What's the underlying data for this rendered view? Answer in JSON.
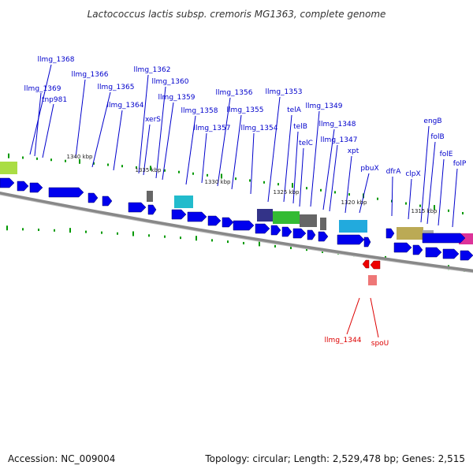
{
  "title": "Lactococcus lactis subsp. cremoris MG1363, complete genome",
  "footer": {
    "accession": "Accession: NC_009004",
    "summary": "Topology: circular; Length: 2,529,478 bp; Genes: 2,515"
  },
  "colors": {
    "forward_gene": "#0000ee",
    "reverse_gene": "#ee0000",
    "backbone": "#888888",
    "marker": "#009900",
    "label_forward": "#0000cc",
    "label_reverse": "#dd0000"
  },
  "gene_labels": [
    "llmg_1368",
    "llmg_1369",
    "tnp981",
    "llmg_1366",
    "llmg_1365",
    "llmg_1364",
    "llmg_1362",
    "llmg_1360",
    "llmg_1359",
    "xerS",
    "llmg_1358",
    "llmg_1357",
    "llmg_1356",
    "llmg_1355",
    "llmg_1354",
    "llmg_1353",
    "telA",
    "telB",
    "telC",
    "llmg_1349",
    "llmg_1348",
    "llmg_1347",
    "xpt",
    "pbuX",
    "dfrA",
    "clpX",
    "engB",
    "folB",
    "folE",
    "folP"
  ],
  "reverse_labels": [
    "llmg_1344",
    "spoU"
  ],
  "scale_labels": [
    "1340 kbp",
    "1335 kbp",
    "1330 kbp",
    "1325 kbp",
    "1320 kbp",
    "1315 kbp"
  ]
}
